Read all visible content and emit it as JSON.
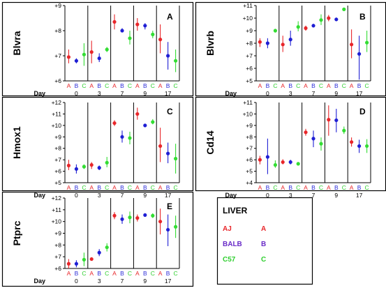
{
  "layout_note": "",
  "colors": {
    "A": "#e8262a",
    "B": "#1f1fd4",
    "C": "#33dd33",
    "axis": "#000000",
    "letterA": "#e8262a",
    "letterB": "#2d2dd8",
    "letterC": "#2fcf2f"
  },
  "day_label": "Day",
  "day_values": [
    "0",
    "3",
    "7",
    "9",
    "17"
  ],
  "strain_letters": [
    "A",
    "B",
    "C"
  ],
  "chart_data": [
    {
      "type": "scatter",
      "title": "Blvra",
      "panel_letter": "A",
      "yticks": [
        "+6",
        "+7",
        "+8",
        "+9"
      ],
      "ylim": [
        6,
        9
      ],
      "xlabel": "Day",
      "groups": [
        "0",
        "3",
        "7",
        "9",
        "17"
      ],
      "series": [
        {
          "name": "A",
          "values": [
            6.95,
            7.15,
            8.35,
            8.25,
            7.65
          ],
          "err_low": [
            6.7,
            6.7,
            8.05,
            8.0,
            7.1
          ],
          "err_high": [
            7.25,
            7.6,
            8.65,
            8.5,
            8.25
          ]
        },
        {
          "name": "B",
          "values": [
            6.8,
            6.9,
            8.0,
            8.2,
            7.0
          ],
          "err_low": [
            6.7,
            6.75,
            7.95,
            8.05,
            6.45
          ],
          "err_high": [
            6.9,
            7.1,
            8.1,
            8.3,
            7.55
          ]
        },
        {
          "name": "C",
          "values": [
            7.05,
            7.25,
            7.7,
            7.85,
            6.8
          ],
          "err_low": [
            6.6,
            7.15,
            7.45,
            7.7,
            6.35
          ],
          "err_high": [
            7.5,
            7.35,
            8.0,
            8.0,
            7.25
          ]
        }
      ]
    },
    {
      "type": "scatter",
      "title": "Blvrb",
      "panel_letter": "B",
      "yticks": [
        "+5",
        "+6",
        "+7",
        "+8",
        "+9",
        "+10",
        "+11"
      ],
      "ylim": [
        5,
        11
      ],
      "xlabel": "Day",
      "groups": [
        "0",
        "3",
        "7",
        "9",
        "17"
      ],
      "series": [
        {
          "name": "A",
          "values": [
            8.1,
            7.9,
            9.2,
            10.0,
            7.9
          ],
          "err_low": [
            7.7,
            7.3,
            9.0,
            9.75,
            6.8
          ],
          "err_high": [
            8.4,
            8.6,
            9.4,
            10.25,
            9.1
          ]
        },
        {
          "name": "B",
          "values": [
            8.0,
            8.3,
            9.4,
            9.9,
            7.15
          ],
          "err_low": [
            7.6,
            7.8,
            9.25,
            9.75,
            5.1
          ],
          "err_high": [
            8.4,
            9.0,
            9.55,
            10.05,
            8.6
          ]
        },
        {
          "name": "C",
          "values": [
            9.0,
            9.3,
            9.85,
            10.7,
            8.05
          ],
          "err_low": [
            8.85,
            8.95,
            9.45,
            10.6,
            7.3
          ],
          "err_high": [
            9.15,
            9.75,
            10.3,
            10.8,
            9.0
          ]
        }
      ]
    },
    {
      "type": "scatter",
      "title": "Hmox1",
      "panel_letter": "C",
      "yticks": [
        "+5",
        "+6",
        "+7",
        "+8",
        "+9",
        "+10",
        "+11",
        "+12"
      ],
      "ylim": [
        5,
        12
      ],
      "xlabel": "Day",
      "groups": [
        "0",
        "3",
        "7",
        "9",
        "17"
      ],
      "series": [
        {
          "name": "A",
          "values": [
            6.5,
            6.55,
            10.2,
            11.0,
            8.2
          ],
          "err_low": [
            6.1,
            6.2,
            9.95,
            10.5,
            6.8
          ],
          "err_high": [
            7.0,
            6.8,
            10.45,
            11.55,
            9.8
          ]
        },
        {
          "name": "B",
          "values": [
            6.2,
            6.3,
            9.0,
            10.0,
            7.55
          ],
          "err_low": [
            5.8,
            6.1,
            8.5,
            9.85,
            6.7
          ],
          "err_high": [
            6.6,
            6.5,
            9.55,
            10.15,
            8.5
          ]
        },
        {
          "name": "C",
          "values": [
            6.4,
            6.75,
            8.9,
            10.3,
            7.1
          ],
          "err_low": [
            6.2,
            6.35,
            8.35,
            10.1,
            5.8
          ],
          "err_high": [
            6.6,
            7.25,
            9.45,
            10.55,
            8.4
          ]
        }
      ]
    },
    {
      "type": "scatter",
      "title": "Cd14",
      "panel_letter": "D",
      "yticks": [
        "+4",
        "+5",
        "+6",
        "+7",
        "+8",
        "+9",
        "+10",
        "+11"
      ],
      "ylim": [
        4,
        11
      ],
      "xlabel": "Day",
      "groups": [
        "0",
        "3",
        "7",
        "9",
        "17"
      ],
      "series": [
        {
          "name": "A",
          "values": [
            6.0,
            5.8,
            8.4,
            9.5,
            7.55
          ],
          "err_low": [
            5.6,
            5.6,
            8.1,
            8.1,
            7.15
          ],
          "err_high": [
            6.35,
            6.05,
            8.7,
            10.75,
            7.95
          ]
        },
        {
          "name": "B",
          "values": [
            6.25,
            5.8,
            7.85,
            9.45,
            7.2
          ],
          "err_low": [
            4.75,
            5.6,
            7.1,
            8.4,
            6.6
          ],
          "err_high": [
            7.85,
            6.0,
            8.55,
            10.45,
            7.75
          ]
        },
        {
          "name": "C",
          "values": [
            5.55,
            5.65,
            7.4,
            8.55,
            7.2
          ],
          "err_low": [
            5.3,
            5.5,
            6.8,
            8.25,
            6.6
          ],
          "err_high": [
            5.95,
            5.8,
            7.95,
            8.9,
            7.8
          ]
        }
      ]
    },
    {
      "type": "scatter",
      "title": "Ptprc",
      "panel_letter": "E",
      "yticks": [
        "+6",
        "+7",
        "+8",
        "+9",
        "+10",
        "+11",
        "+12"
      ],
      "ylim": [
        6,
        12
      ],
      "xlabel": "Day",
      "groups": [
        "0",
        "3",
        "7",
        "9",
        "17"
      ],
      "series": [
        {
          "name": "A",
          "values": [
            6.4,
            6.8,
            10.5,
            10.3,
            10.0
          ],
          "err_low": [
            6.0,
            6.7,
            10.2,
            10.0,
            8.9
          ],
          "err_high": [
            6.8,
            6.95,
            10.8,
            10.6,
            11.1
          ]
        },
        {
          "name": "B",
          "values": [
            6.4,
            7.35,
            10.2,
            10.55,
            9.3
          ],
          "err_low": [
            6.1,
            7.05,
            9.8,
            10.4,
            7.9
          ],
          "err_high": [
            6.7,
            7.65,
            10.6,
            10.7,
            10.6
          ]
        },
        {
          "name": "C",
          "values": [
            6.75,
            7.8,
            10.35,
            10.5,
            9.55
          ],
          "err_low": [
            6.2,
            7.45,
            9.85,
            10.3,
            8.6
          ],
          "err_high": [
            7.35,
            8.15,
            10.85,
            10.7,
            10.5
          ]
        }
      ]
    }
  ],
  "legend": {
    "title": "LIVER",
    "rows": [
      {
        "name": "AJ",
        "letter": "A",
        "color": "#e8262a"
      },
      {
        "name": "BALB",
        "letter": "B",
        "color": "#6a2dc8"
      },
      {
        "name": "C57",
        "letter": "C",
        "color": "#2fcf2f"
      }
    ]
  }
}
